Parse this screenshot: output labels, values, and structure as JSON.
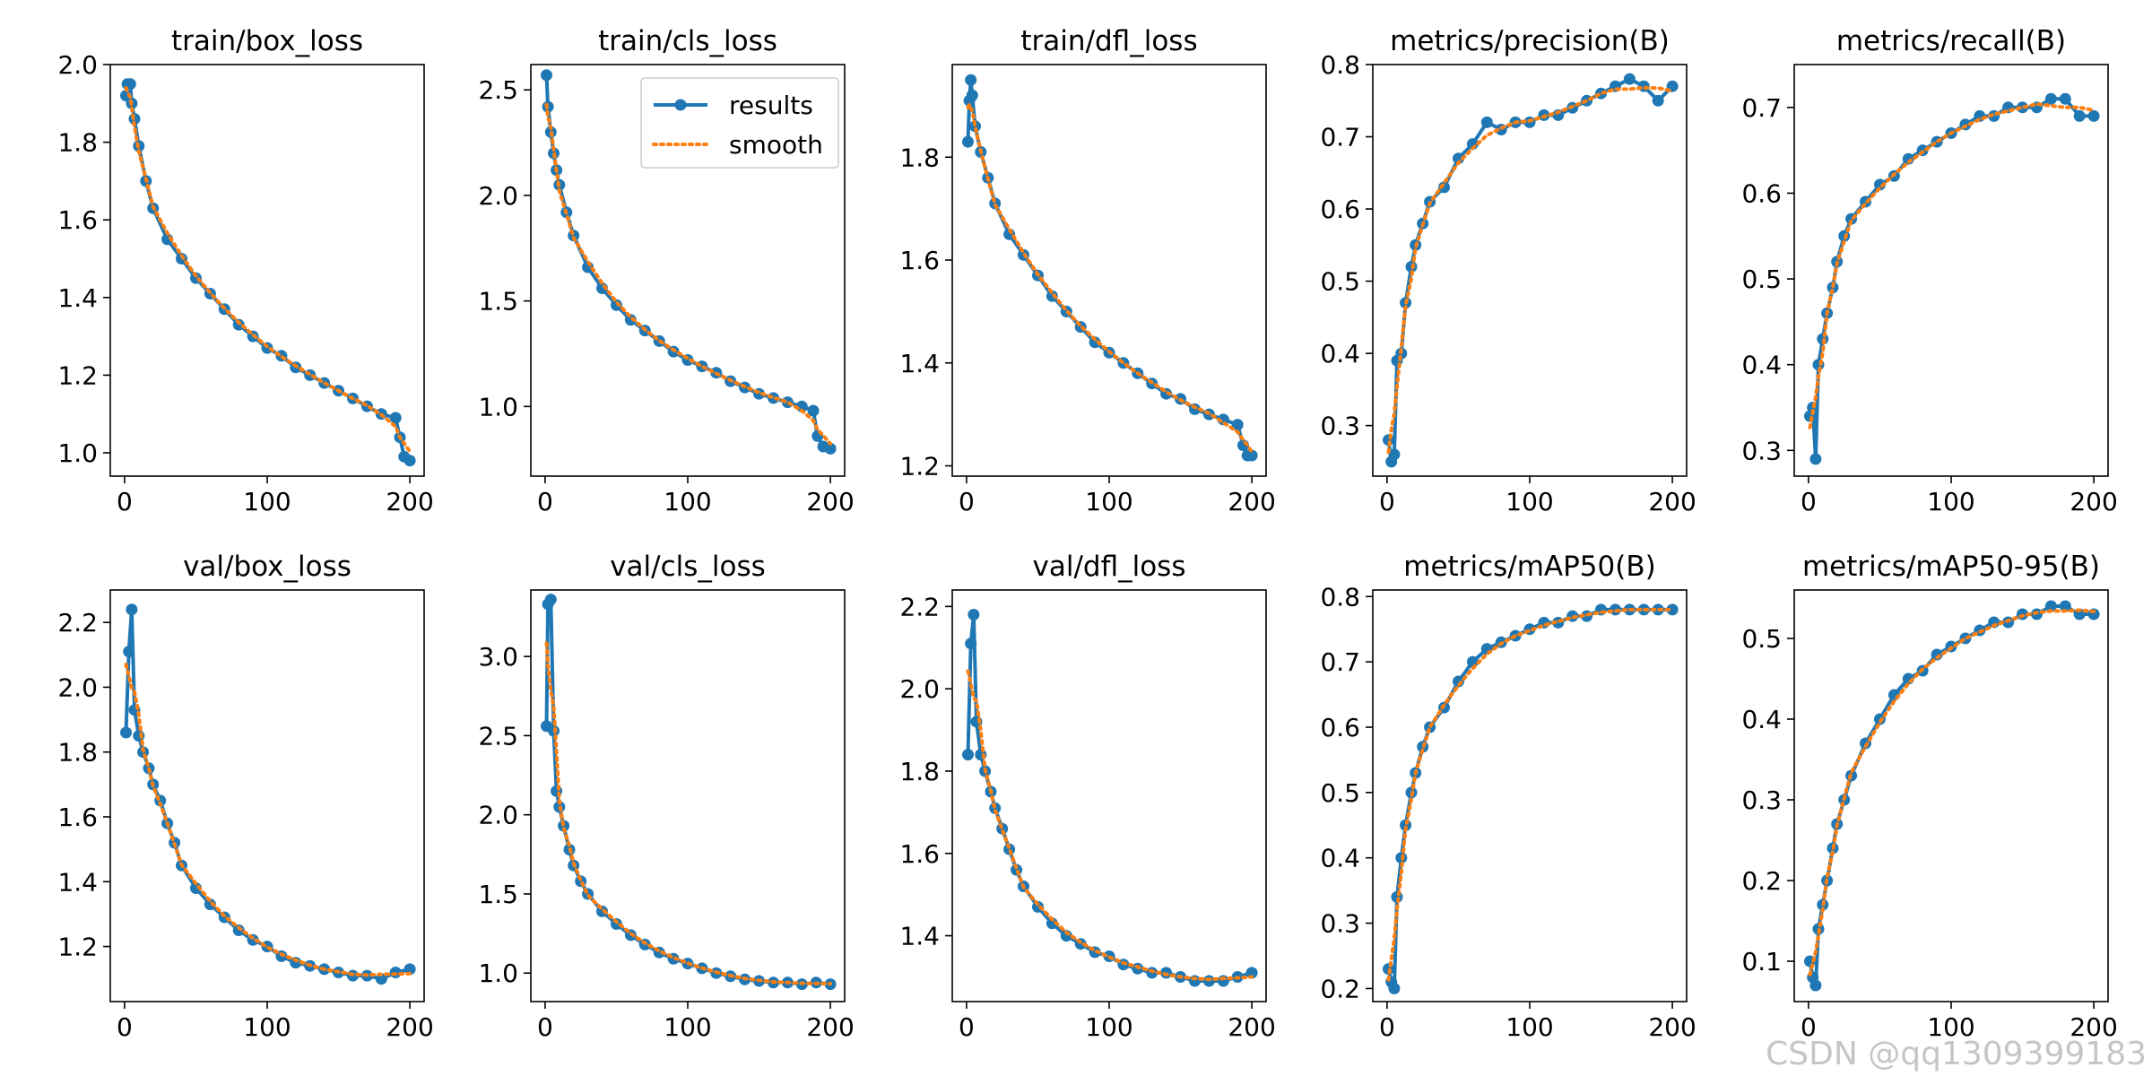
{
  "colors": {
    "results": "#1f77b4",
    "smooth": "#ff7f0e",
    "axis": "#000000",
    "background": "#ffffff"
  },
  "watermark": "CSDN @qq1309399183",
  "legend": {
    "results_label": "results",
    "smooth_label": "smooth"
  },
  "chart_data": [
    {
      "type": "line",
      "title": "train/box_loss",
      "xlabel": "",
      "ylabel": "",
      "legend": "none",
      "xlim": [
        -10,
        210
      ],
      "ylim": [
        0.94,
        2.0
      ],
      "xticks": [
        0,
        100,
        200
      ],
      "yticks": [
        1.0,
        1.2,
        1.4,
        1.6,
        1.8,
        2.0
      ],
      "points": [
        [
          1,
          1.92
        ],
        [
          2,
          1.95
        ],
        [
          4,
          1.95
        ],
        [
          5,
          1.9
        ],
        [
          7,
          1.86
        ],
        [
          10,
          1.79
        ],
        [
          15,
          1.7
        ],
        [
          20,
          1.63
        ],
        [
          30,
          1.55
        ],
        [
          40,
          1.5
        ],
        [
          50,
          1.45
        ],
        [
          60,
          1.41
        ],
        [
          70,
          1.37
        ],
        [
          80,
          1.33
        ],
        [
          90,
          1.3
        ],
        [
          100,
          1.27
        ],
        [
          110,
          1.25
        ],
        [
          120,
          1.22
        ],
        [
          130,
          1.2
        ],
        [
          140,
          1.18
        ],
        [
          150,
          1.16
        ],
        [
          160,
          1.14
        ],
        [
          170,
          1.12
        ],
        [
          180,
          1.1
        ],
        [
          190,
          1.09
        ],
        [
          193,
          1.04
        ],
        [
          196,
          0.99
        ],
        [
          200,
          0.98
        ]
      ]
    },
    {
      "type": "line",
      "title": "train/cls_loss",
      "xlabel": "",
      "ylabel": "",
      "legend": "top-right",
      "xlim": [
        -10,
        210
      ],
      "ylim": [
        0.67,
        2.62
      ],
      "xticks": [
        0,
        100,
        200
      ],
      "yticks": [
        1.0,
        1.5,
        2.0,
        2.5
      ],
      "points": [
        [
          1,
          2.57
        ],
        [
          2,
          2.42
        ],
        [
          4,
          2.3
        ],
        [
          6,
          2.2
        ],
        [
          8,
          2.12
        ],
        [
          10,
          2.05
        ],
        [
          15,
          1.92
        ],
        [
          20,
          1.81
        ],
        [
          30,
          1.66
        ],
        [
          40,
          1.56
        ],
        [
          50,
          1.48
        ],
        [
          60,
          1.41
        ],
        [
          70,
          1.36
        ],
        [
          80,
          1.31
        ],
        [
          90,
          1.26
        ],
        [
          100,
          1.22
        ],
        [
          110,
          1.19
        ],
        [
          120,
          1.16
        ],
        [
          130,
          1.12
        ],
        [
          140,
          1.09
        ],
        [
          150,
          1.06
        ],
        [
          160,
          1.04
        ],
        [
          170,
          1.02
        ],
        [
          180,
          1.0
        ],
        [
          188,
          0.98
        ],
        [
          191,
          0.86
        ],
        [
          195,
          0.81
        ],
        [
          200,
          0.8
        ]
      ]
    },
    {
      "type": "line",
      "title": "train/dfl_loss",
      "xlabel": "",
      "ylabel": "",
      "legend": "none",
      "xlim": [
        -10,
        210
      ],
      "ylim": [
        1.18,
        1.98
      ],
      "xticks": [
        0,
        100,
        200
      ],
      "yticks": [
        1.2,
        1.4,
        1.6,
        1.8
      ],
      "points": [
        [
          1,
          1.83
        ],
        [
          2,
          1.91
        ],
        [
          3,
          1.95
        ],
        [
          4,
          1.92
        ],
        [
          6,
          1.86
        ],
        [
          10,
          1.81
        ],
        [
          15,
          1.76
        ],
        [
          20,
          1.71
        ],
        [
          30,
          1.65
        ],
        [
          40,
          1.61
        ],
        [
          50,
          1.57
        ],
        [
          60,
          1.53
        ],
        [
          70,
          1.5
        ],
        [
          80,
          1.47
        ],
        [
          90,
          1.44
        ],
        [
          100,
          1.42
        ],
        [
          110,
          1.4
        ],
        [
          120,
          1.38
        ],
        [
          130,
          1.36
        ],
        [
          140,
          1.34
        ],
        [
          150,
          1.33
        ],
        [
          160,
          1.31
        ],
        [
          170,
          1.3
        ],
        [
          180,
          1.29
        ],
        [
          190,
          1.28
        ],
        [
          194,
          1.24
        ],
        [
          197,
          1.22
        ],
        [
          200,
          1.22
        ]
      ]
    },
    {
      "type": "line",
      "title": "metrics/precision(B)",
      "xlabel": "",
      "ylabel": "",
      "legend": "none",
      "xlim": [
        -10,
        210
      ],
      "ylim": [
        0.23,
        0.8
      ],
      "xticks": [
        0,
        100,
        200
      ],
      "yticks": [
        0.3,
        0.4,
        0.5,
        0.6,
        0.7,
        0.8
      ],
      "points": [
        [
          1,
          0.28
        ],
        [
          3,
          0.25
        ],
        [
          5,
          0.26
        ],
        [
          7,
          0.39
        ],
        [
          10,
          0.4
        ],
        [
          13,
          0.47
        ],
        [
          17,
          0.52
        ],
        [
          20,
          0.55
        ],
        [
          25,
          0.58
        ],
        [
          30,
          0.61
        ],
        [
          40,
          0.63
        ],
        [
          50,
          0.67
        ],
        [
          60,
          0.69
        ],
        [
          70,
          0.72
        ],
        [
          80,
          0.71
        ],
        [
          90,
          0.72
        ],
        [
          100,
          0.72
        ],
        [
          110,
          0.73
        ],
        [
          120,
          0.73
        ],
        [
          130,
          0.74
        ],
        [
          140,
          0.75
        ],
        [
          150,
          0.76
        ],
        [
          160,
          0.77
        ],
        [
          170,
          0.78
        ],
        [
          180,
          0.77
        ],
        [
          190,
          0.75
        ],
        [
          200,
          0.77
        ]
      ]
    },
    {
      "type": "line",
      "title": "metrics/recall(B)",
      "xlabel": "",
      "ylabel": "",
      "legend": "none",
      "xlim": [
        -10,
        210
      ],
      "ylim": [
        0.27,
        0.75
      ],
      "xticks": [
        0,
        100,
        200
      ],
      "yticks": [
        0.3,
        0.4,
        0.5,
        0.6,
        0.7
      ],
      "points": [
        [
          1,
          0.34
        ],
        [
          3,
          0.35
        ],
        [
          5,
          0.29
        ],
        [
          7,
          0.4
        ],
        [
          10,
          0.43
        ],
        [
          13,
          0.46
        ],
        [
          17,
          0.49
        ],
        [
          20,
          0.52
        ],
        [
          25,
          0.55
        ],
        [
          30,
          0.57
        ],
        [
          40,
          0.59
        ],
        [
          50,
          0.61
        ],
        [
          60,
          0.62
        ],
        [
          70,
          0.64
        ],
        [
          80,
          0.65
        ],
        [
          90,
          0.66
        ],
        [
          100,
          0.67
        ],
        [
          110,
          0.68
        ],
        [
          120,
          0.69
        ],
        [
          130,
          0.69
        ],
        [
          140,
          0.7
        ],
        [
          150,
          0.7
        ],
        [
          160,
          0.7
        ],
        [
          170,
          0.71
        ],
        [
          180,
          0.71
        ],
        [
          190,
          0.69
        ],
        [
          200,
          0.69
        ]
      ]
    },
    {
      "type": "line",
      "title": "val/box_loss",
      "xlabel": "",
      "ylabel": "",
      "legend": "none",
      "xlim": [
        -10,
        210
      ],
      "ylim": [
        1.03,
        2.3
      ],
      "xticks": [
        0,
        100,
        200
      ],
      "yticks": [
        1.2,
        1.4,
        1.6,
        1.8,
        2.0,
        2.2
      ],
      "points": [
        [
          1,
          1.86
        ],
        [
          3,
          2.11
        ],
        [
          5,
          2.24
        ],
        [
          7,
          1.93
        ],
        [
          10,
          1.85
        ],
        [
          13,
          1.8
        ],
        [
          17,
          1.75
        ],
        [
          20,
          1.7
        ],
        [
          25,
          1.65
        ],
        [
          30,
          1.58
        ],
        [
          35,
          1.52
        ],
        [
          40,
          1.45
        ],
        [
          50,
          1.38
        ],
        [
          60,
          1.33
        ],
        [
          70,
          1.29
        ],
        [
          80,
          1.25
        ],
        [
          90,
          1.22
        ],
        [
          100,
          1.2
        ],
        [
          110,
          1.17
        ],
        [
          120,
          1.15
        ],
        [
          130,
          1.14
        ],
        [
          140,
          1.13
        ],
        [
          150,
          1.12
        ],
        [
          160,
          1.11
        ],
        [
          170,
          1.11
        ],
        [
          180,
          1.1
        ],
        [
          190,
          1.12
        ],
        [
          200,
          1.13
        ]
      ]
    },
    {
      "type": "line",
      "title": "val/cls_loss",
      "xlabel": "",
      "ylabel": "",
      "legend": "none",
      "xlim": [
        -10,
        210
      ],
      "ylim": [
        0.82,
        3.42
      ],
      "xticks": [
        0,
        100,
        200
      ],
      "yticks": [
        1.0,
        1.5,
        2.0,
        2.5,
        3.0
      ],
      "points": [
        [
          1,
          2.56
        ],
        [
          2,
          3.33
        ],
        [
          4,
          3.36
        ],
        [
          6,
          2.53
        ],
        [
          8,
          2.15
        ],
        [
          10,
          2.05
        ],
        [
          13,
          1.93
        ],
        [
          17,
          1.78
        ],
        [
          20,
          1.68
        ],
        [
          25,
          1.58
        ],
        [
          30,
          1.5
        ],
        [
          40,
          1.39
        ],
        [
          50,
          1.31
        ],
        [
          60,
          1.24
        ],
        [
          70,
          1.18
        ],
        [
          80,
          1.13
        ],
        [
          90,
          1.09
        ],
        [
          100,
          1.06
        ],
        [
          110,
          1.03
        ],
        [
          120,
          1.0
        ],
        [
          130,
          0.98
        ],
        [
          140,
          0.96
        ],
        [
          150,
          0.95
        ],
        [
          160,
          0.94
        ],
        [
          170,
          0.94
        ],
        [
          180,
          0.93
        ],
        [
          190,
          0.94
        ],
        [
          200,
          0.93
        ]
      ]
    },
    {
      "type": "line",
      "title": "val/dfl_loss",
      "xlabel": "",
      "ylabel": "",
      "legend": "none",
      "xlim": [
        -10,
        210
      ],
      "ylim": [
        1.24,
        2.24
      ],
      "xticks": [
        0,
        100,
        200
      ],
      "yticks": [
        1.4,
        1.6,
        1.8,
        2.0,
        2.2
      ],
      "points": [
        [
          1,
          1.84
        ],
        [
          3,
          2.11
        ],
        [
          5,
          2.18
        ],
        [
          7,
          1.92
        ],
        [
          10,
          1.84
        ],
        [
          13,
          1.8
        ],
        [
          17,
          1.75
        ],
        [
          20,
          1.71
        ],
        [
          25,
          1.66
        ],
        [
          30,
          1.61
        ],
        [
          35,
          1.56
        ],
        [
          40,
          1.52
        ],
        [
          50,
          1.47
        ],
        [
          60,
          1.43
        ],
        [
          70,
          1.4
        ],
        [
          80,
          1.38
        ],
        [
          90,
          1.36
        ],
        [
          100,
          1.35
        ],
        [
          110,
          1.33
        ],
        [
          120,
          1.32
        ],
        [
          130,
          1.31
        ],
        [
          140,
          1.31
        ],
        [
          150,
          1.3
        ],
        [
          160,
          1.29
        ],
        [
          170,
          1.29
        ],
        [
          180,
          1.29
        ],
        [
          190,
          1.3
        ],
        [
          200,
          1.31
        ]
      ]
    },
    {
      "type": "line",
      "title": "metrics/mAP50(B)",
      "xlabel": "",
      "ylabel": "",
      "legend": "none",
      "xlim": [
        -10,
        210
      ],
      "ylim": [
        0.18,
        0.81
      ],
      "xticks": [
        0,
        100,
        200
      ],
      "yticks": [
        0.2,
        0.3,
        0.4,
        0.5,
        0.6,
        0.7,
        0.8
      ],
      "points": [
        [
          1,
          0.23
        ],
        [
          3,
          0.21
        ],
        [
          5,
          0.2
        ],
        [
          7,
          0.34
        ],
        [
          10,
          0.4
        ],
        [
          13,
          0.45
        ],
        [
          17,
          0.5
        ],
        [
          20,
          0.53
        ],
        [
          25,
          0.57
        ],
        [
          30,
          0.6
        ],
        [
          40,
          0.63
        ],
        [
          50,
          0.67
        ],
        [
          60,
          0.7
        ],
        [
          70,
          0.72
        ],
        [
          80,
          0.73
        ],
        [
          90,
          0.74
        ],
        [
          100,
          0.75
        ],
        [
          110,
          0.76
        ],
        [
          120,
          0.76
        ],
        [
          130,
          0.77
        ],
        [
          140,
          0.77
        ],
        [
          150,
          0.78
        ],
        [
          160,
          0.78
        ],
        [
          170,
          0.78
        ],
        [
          180,
          0.78
        ],
        [
          190,
          0.78
        ],
        [
          200,
          0.78
        ]
      ]
    },
    {
      "type": "line",
      "title": "metrics/mAP50-95(B)",
      "xlabel": "",
      "ylabel": "",
      "legend": "none",
      "xlim": [
        -10,
        210
      ],
      "ylim": [
        0.05,
        0.56
      ],
      "xticks": [
        0,
        100,
        200
      ],
      "yticks": [
        0.1,
        0.2,
        0.3,
        0.4,
        0.5
      ],
      "points": [
        [
          1,
          0.1
        ],
        [
          3,
          0.08
        ],
        [
          5,
          0.07
        ],
        [
          7,
          0.14
        ],
        [
          10,
          0.17
        ],
        [
          13,
          0.2
        ],
        [
          17,
          0.24
        ],
        [
          20,
          0.27
        ],
        [
          25,
          0.3
        ],
        [
          30,
          0.33
        ],
        [
          40,
          0.37
        ],
        [
          50,
          0.4
        ],
        [
          60,
          0.43
        ],
        [
          70,
          0.45
        ],
        [
          80,
          0.46
        ],
        [
          90,
          0.48
        ],
        [
          100,
          0.49
        ],
        [
          110,
          0.5
        ],
        [
          120,
          0.51
        ],
        [
          130,
          0.52
        ],
        [
          140,
          0.52
        ],
        [
          150,
          0.53
        ],
        [
          160,
          0.53
        ],
        [
          170,
          0.54
        ],
        [
          180,
          0.54
        ],
        [
          190,
          0.53
        ],
        [
          200,
          0.53
        ]
      ]
    }
  ]
}
